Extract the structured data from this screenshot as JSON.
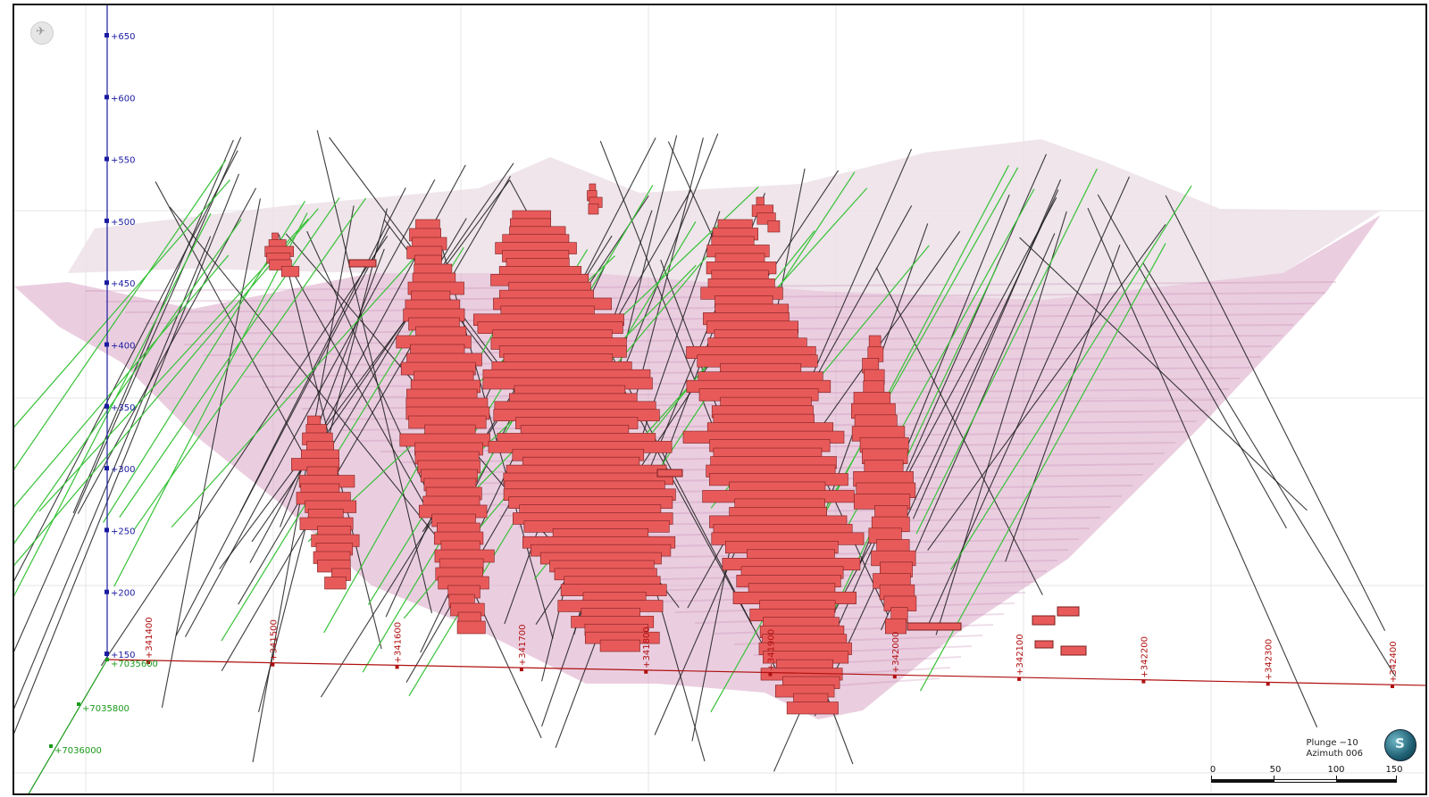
{
  "view": {
    "plunge_text": "Plunge −10",
    "azimuth_text": "Azimuth 006"
  },
  "elevation_axis": {
    "color": "#1a1aa0",
    "labels": [
      "+650",
      "+600",
      "+550",
      "+500",
      "+450",
      "+400",
      "+350",
      "+300",
      "+250",
      "+200",
      "+150"
    ]
  },
  "easting_axis": {
    "color": "#b01010",
    "labels": [
      "+341400",
      "+341500",
      "+341600",
      "+341700",
      "+341800",
      "+341900",
      "+342000",
      "+342100",
      "+342200",
      "+342300",
      "+342400"
    ]
  },
  "northing_axis": {
    "color": "#1a9a1a",
    "labels": [
      "+7035600",
      "+7035800",
      "+7036000"
    ]
  },
  "scale_bar": {
    "labels": [
      "0",
      "50",
      "100",
      "150"
    ]
  },
  "colors": {
    "ore_body": "#e85a5a",
    "ore_edge": "#7a1e1e",
    "pit_shell": "#d8a6c6",
    "pit_shell_upper": "#ece0e8",
    "drillhole_black": "#1a1a1a",
    "drillhole_green": "#36c236"
  },
  "icons": {
    "reset_view": "compass-reset-icon",
    "orientation": "globe-orientation-icon"
  }
}
